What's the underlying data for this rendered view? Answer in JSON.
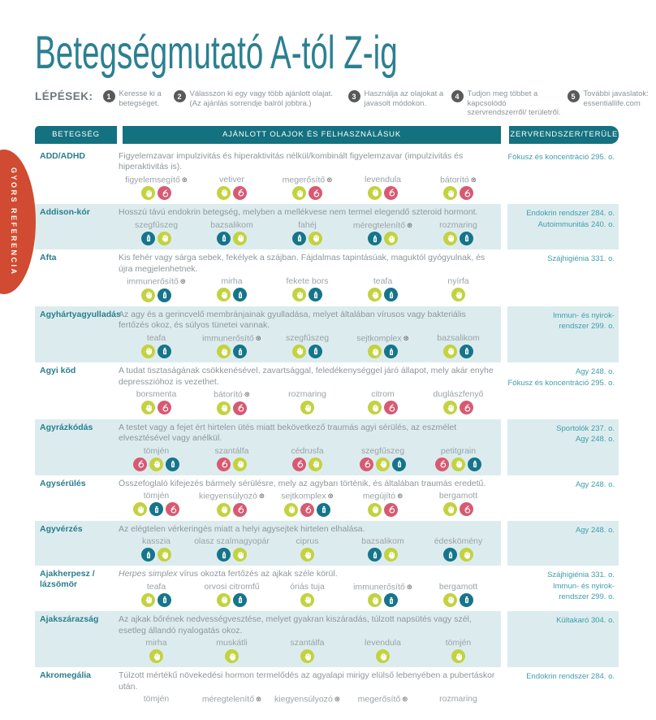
{
  "title": "Betegségmutató A-tól Z-ig",
  "side_tab": "GYORS REFERENCIA",
  "steps_label": "LÉPÉSEK:",
  "steps": [
    {
      "num": "1",
      "text": "Keresse ki a betegséget."
    },
    {
      "num": "2",
      "text": "Válasszon ki egy vagy több ajánlott olajat. (Az ajánlás sorrendje balról jobbra.)"
    },
    {
      "num": "3",
      "text": "Használja az olajokat a javasolt módokon."
    },
    {
      "num": "4",
      "text": "Tudjon meg többet a kapcsolódó szervrendszerről/ területről."
    },
    {
      "num": "5",
      "text": "További javaslatok: essentiallife.com"
    }
  ],
  "theme": {
    "teal_header": "#14717f",
    "teal_title": "#2b8092",
    "teal_ref": "#3f9dab",
    "light_blue_row": "#dcecee",
    "red_tab": "#d04b31",
    "icon_topical": "#c3d23f",
    "icon_aromatic": "#d75a72",
    "icon_internal": "#15758a"
  },
  "icons_legend": {
    "topical": "hand",
    "aromatic": "vapor-swirl",
    "internal": "bottle",
    "blend_mark": "circled-asterisk"
  },
  "table": {
    "headers": [
      "BETEGSÉG",
      "AJÁNLOTT OLAJOK ÉS FELHASZNÁLÁSUK",
      "SZERVRENDSZER/TERÜLET"
    ],
    "rows": [
      {
        "name": "ADD/ADHD",
        "alt": false,
        "desc": "Figyelemzavar impulzivitás és hiperaktivitás nélkül/kombinált figyelemzavar (impulzivitás és hiperaktivitás is).",
        "oils": [
          {
            "n": "figyelemsegítő",
            "b": true,
            "i": [
              "t",
              "a"
            ]
          },
          {
            "n": "vetiver",
            "i": [
              "t",
              "a"
            ]
          },
          {
            "n": "megerősítő",
            "b": true,
            "i": [
              "t",
              "a"
            ]
          },
          {
            "n": "levendula",
            "i": [
              "t",
              "a"
            ]
          },
          {
            "n": "bátorító",
            "b": true,
            "i": [
              "t",
              "a"
            ]
          }
        ],
        "refs": [
          "Fókusz és koncentráció 295. o."
        ]
      },
      {
        "name": "Addison-kór",
        "alt": true,
        "desc": "Hosszú távú endokrin betegség, melyben a mellékvese nem termel elegendő szteroid hormont.",
        "oils": [
          {
            "n": "szegfűszeg",
            "i": [
              "n",
              "t"
            ]
          },
          {
            "n": "bazsalikom",
            "i": [
              "n",
              "t"
            ]
          },
          {
            "n": "fahéj",
            "i": [
              "n",
              "t"
            ]
          },
          {
            "n": "méregtelenítő",
            "b": true,
            "i": [
              "n",
              "t"
            ]
          },
          {
            "n": "rozmaring",
            "i": [
              "t",
              "n"
            ]
          }
        ],
        "refs": [
          "Endokrin rendszer 284. o.",
          "Autoimmunitás 240. o."
        ]
      },
      {
        "name": "Afta",
        "alt": false,
        "desc": "Kis fehér vagy sárga sebek, fekélyek a szájban. Fájdalmas tapintásúak, maguktól gyógyulnak, és újra megjelenhetnek.",
        "oils": [
          {
            "n": "immunerősítő",
            "b": true,
            "i": [
              "t",
              "n"
            ]
          },
          {
            "n": "mirha",
            "i": [
              "t",
              "n"
            ]
          },
          {
            "n": "fekete bors",
            "i": [
              "t",
              "n"
            ]
          },
          {
            "n": "teafa",
            "i": [
              "t",
              "n"
            ]
          },
          {
            "n": "nyírfa",
            "i": [
              "t"
            ]
          }
        ],
        "refs": [
          "Szájhigiénia 331. o."
        ]
      },
      {
        "name": "Agyhártyagyulladás",
        "alt": true,
        "desc": "Az agy és a gerincvelő membránjainak gyulladása, melyet általában vírusos vagy bakteriális fertőzés okoz, és súlyos tünetei vannak.",
        "oils": [
          {
            "n": "teafa",
            "i": [
              "t",
              "n"
            ]
          },
          {
            "n": "immunerősítő",
            "b": true,
            "i": [
              "t",
              "n"
            ]
          },
          {
            "n": "szegfűszeg",
            "i": [
              "t",
              "n"
            ]
          },
          {
            "n": "sejtkomplex",
            "b": true,
            "i": [
              "t",
              "n"
            ]
          },
          {
            "n": "bazsalikom",
            "i": [
              "t",
              "n"
            ]
          }
        ],
        "refs": [
          "Immun- és nyirok-",
          "rendszer 299. o."
        ]
      },
      {
        "name": "Agyi köd",
        "alt": false,
        "desc": "A tudat tisztaságának csökkenésével, zavartsággal, feledékenységgel járó állapot, mely akár enyhe depresszióhoz is vezethet.",
        "oils": [
          {
            "n": "borsmenta",
            "i": [
              "t",
              "a"
            ]
          },
          {
            "n": "bátorító",
            "b": true,
            "i": [
              "t",
              "a"
            ]
          },
          {
            "n": "rozmaring",
            "i": [
              "t"
            ]
          },
          {
            "n": "citrom",
            "i": [
              "t",
              "a"
            ]
          },
          {
            "n": "duglászfenyő",
            "i": [
              "t",
              "a"
            ]
          }
        ],
        "refs": [
          "Agy 248. o.",
          "Fókusz és koncentráció 295. o."
        ]
      },
      {
        "name": "Agyrázkódás",
        "alt": true,
        "desc": "A testet vagy a fejet ért hirtelen ütés miatt bekövetkező traumás agyi sérülés, az eszmélet elvesztésével vagy anélkül.",
        "oils": [
          {
            "n": "tömjén",
            "i": [
              "a",
              "t",
              "n"
            ]
          },
          {
            "n": "szantálfa",
            "i": [
              "a",
              "t"
            ]
          },
          {
            "n": "cédrusfa",
            "i": [
              "a",
              "t"
            ]
          },
          {
            "n": "szegfűszeg",
            "i": [
              "a",
              "t",
              "n"
            ]
          },
          {
            "n": "petitgrain",
            "i": [
              "a",
              "t",
              "n"
            ]
          }
        ],
        "refs": [
          "Sportolók 237. o.",
          "Agy 248. o."
        ]
      },
      {
        "name": "Agysérülés",
        "alt": false,
        "desc": "Összefoglaló kifejezés bármely sérülésre, mely az agyban történik, és általában traumás eredetű.",
        "oils": [
          {
            "n": "tömjén",
            "i": [
              "t",
              "n",
              "a"
            ]
          },
          {
            "n": "kiegyensúlyozó",
            "b": true,
            "i": [
              "t",
              "a"
            ]
          },
          {
            "n": "sejtkomplex",
            "b": true,
            "i": [
              "t",
              "a",
              "n"
            ]
          },
          {
            "n": "megújító",
            "b": true,
            "i": [
              "t",
              "a"
            ]
          },
          {
            "n": "bergamott",
            "i": [
              "t",
              "a"
            ]
          }
        ],
        "refs": [
          "Agy 248. o."
        ]
      },
      {
        "name": "Agyvérzés",
        "alt": true,
        "desc": "Az elégtelen vérkeringés miatt a helyi agysejtek hirtelen elhalása.",
        "oils": [
          {
            "n": "kasszia",
            "i": [
              "n",
              "t"
            ]
          },
          {
            "n": "olasz szalmagyopár",
            "i": [
              "n",
              "t"
            ]
          },
          {
            "n": "ciprus",
            "i": [
              "t"
            ]
          },
          {
            "n": "bazsalikom",
            "i": [
              "n",
              "t"
            ]
          },
          {
            "n": "édeskömény",
            "i": [
              "n",
              "t"
            ]
          }
        ],
        "refs": [
          "Agy 248. o."
        ]
      },
      {
        "name": "Ajakherpesz / lázsömör",
        "alt": false,
        "desc_italic": "Herpes simplex",
        "desc": " vírus okozta fertőzés az ajkak széle körül.",
        "oils": [
          {
            "n": "teafa",
            "i": [
              "t",
              "n"
            ]
          },
          {
            "n": "orvosi citromfű",
            "i": [
              "t",
              "n"
            ]
          },
          {
            "n": "óriás tuja",
            "i": [
              "t"
            ]
          },
          {
            "n": "immunerősítő",
            "b": true,
            "i": [
              "t",
              "n"
            ]
          },
          {
            "n": "bergamott",
            "i": [
              "t",
              "n"
            ]
          }
        ],
        "refs": [
          "Szájhigiénia 331. o.",
          "Immun- és nyirok-",
          "rendszer 299. o."
        ]
      },
      {
        "name": "Ajakszárazság",
        "alt": true,
        "desc": "Az ajkak bőrének nedvességvesztése, melyet gyakran kiszáradás, túlzott napsütés vagy szél, esetleg állandó nyalogatás okoz.",
        "oils": [
          {
            "n": "mirha",
            "i": [
              "t"
            ]
          },
          {
            "n": "muskátli",
            "i": [
              "t"
            ]
          },
          {
            "n": "szantálfa",
            "i": [
              "t"
            ]
          },
          {
            "n": "levendula",
            "i": [
              "t"
            ]
          },
          {
            "n": "tömjén",
            "i": [
              "t"
            ]
          }
        ],
        "refs": [
          "Kültakaró 304. o."
        ]
      },
      {
        "name": "Akromegália",
        "alt": false,
        "desc": "Túlzott mértékű növekedési hormon termelődés az agyalapi mirigy elülső lebenyében a pubertáskor után.",
        "oils": [
          {
            "n": "tömjén",
            "i": []
          },
          {
            "n": "méregtelenítő",
            "b": true,
            "i": []
          },
          {
            "n": "kiegyensúlyozó",
            "b": true,
            "i": []
          },
          {
            "n": "megerősítő",
            "b": true,
            "i": []
          },
          {
            "n": "rozmaring",
            "i": []
          }
        ],
        "refs": [
          "Endokrin rendszer 284. o."
        ]
      }
    ]
  }
}
